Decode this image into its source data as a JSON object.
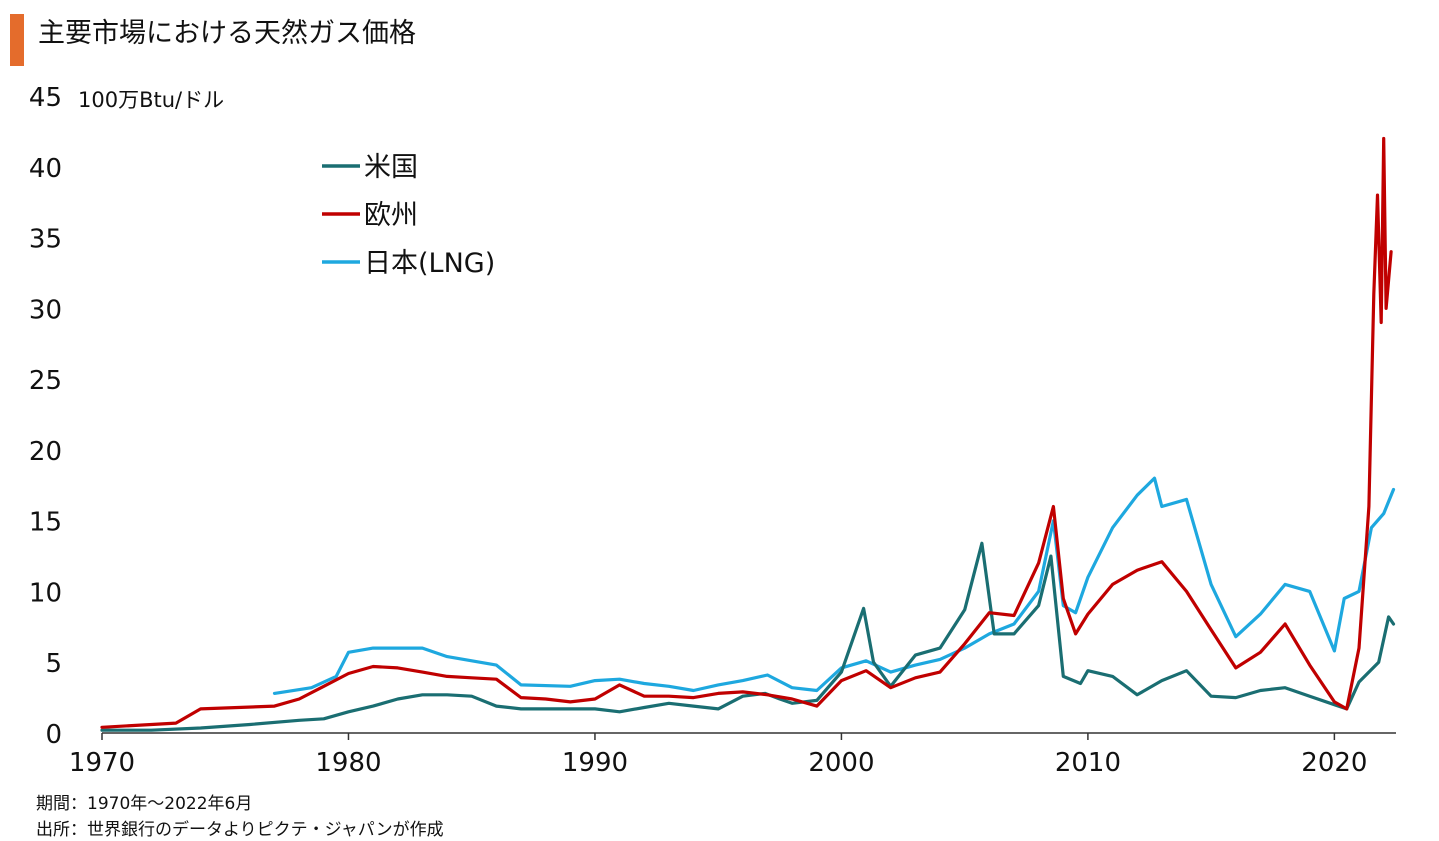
{
  "colors": {
    "title_bar": "#e46c2c",
    "us": "#1a6e72",
    "eu": "#c00000",
    "jp": "#1ea8df"
  },
  "title": "主要市場における天然ガス価格",
  "footnotes": {
    "period": "期間：1970年～2022年6月",
    "source": "出所：世界銀行のデータよりピクテ・ジャパンが作成"
  },
  "chart_data": {
    "type": "line",
    "ylabel": "100万Btu/ドル",
    "xlim": [
      1970,
      2022.5
    ],
    "ylim": [
      0,
      45
    ],
    "x_ticks": [
      1970,
      1980,
      1990,
      2000,
      2010,
      2020
    ],
    "y_ticks": [
      0,
      5,
      10,
      15,
      20,
      25,
      30,
      35,
      40,
      45
    ],
    "legend_position": "top-left",
    "grid": false,
    "series": [
      {
        "name": "米国",
        "color": "#1a6e72",
        "points": [
          [
            1970,
            0.2
          ],
          [
            1972,
            0.2
          ],
          [
            1974,
            0.35
          ],
          [
            1976,
            0.6
          ],
          [
            1978,
            0.9
          ],
          [
            1979,
            1.0
          ],
          [
            1980,
            1.5
          ],
          [
            1981,
            1.9
          ],
          [
            1982,
            2.4
          ],
          [
            1983,
            2.7
          ],
          [
            1984,
            2.7
          ],
          [
            1985,
            2.6
          ],
          [
            1986,
            1.9
          ],
          [
            1987,
            1.7
          ],
          [
            1988,
            1.7
          ],
          [
            1989,
            1.7
          ],
          [
            1990,
            1.7
          ],
          [
            1991,
            1.5
          ],
          [
            1992,
            1.8
          ],
          [
            1993,
            2.1
          ],
          [
            1994,
            1.9
          ],
          [
            1995,
            1.7
          ],
          [
            1996,
            2.6
          ],
          [
            1996.9,
            2.8
          ],
          [
            1997.5,
            2.4
          ],
          [
            1998,
            2.1
          ],
          [
            1999,
            2.3
          ],
          [
            2000,
            4.3
          ],
          [
            2000.9,
            8.8
          ],
          [
            2001.3,
            5.0
          ],
          [
            2002,
            3.3
          ],
          [
            2003,
            5.5
          ],
          [
            2004,
            6.0
          ],
          [
            2005,
            8.7
          ],
          [
            2005.7,
            13.4
          ],
          [
            2006.2,
            7.0
          ],
          [
            2007,
            7.0
          ],
          [
            2008,
            9.0
          ],
          [
            2008.5,
            12.5
          ],
          [
            2009,
            4.0
          ],
          [
            2009.7,
            3.5
          ],
          [
            2010,
            4.4
          ],
          [
            2011,
            4.0
          ],
          [
            2012,
            2.7
          ],
          [
            2013,
            3.7
          ],
          [
            2014,
            4.4
          ],
          [
            2015,
            2.6
          ],
          [
            2016,
            2.5
          ],
          [
            2017,
            3.0
          ],
          [
            2018,
            3.2
          ],
          [
            2019,
            2.6
          ],
          [
            2020,
            2.0
          ],
          [
            2020.5,
            1.7
          ],
          [
            2021,
            3.6
          ],
          [
            2021.8,
            5.0
          ],
          [
            2022.2,
            8.2
          ],
          [
            2022.4,
            7.7
          ]
        ]
      },
      {
        "name": "欧州",
        "color": "#c00000",
        "points": [
          [
            1970,
            0.4
          ],
          [
            1973,
            0.7
          ],
          [
            1974,
            1.7
          ],
          [
            1977,
            1.9
          ],
          [
            1978,
            2.4
          ],
          [
            1979,
            3.3
          ],
          [
            1980,
            4.2
          ],
          [
            1981,
            4.7
          ],
          [
            1982,
            4.6
          ],
          [
            1983,
            4.3
          ],
          [
            1984,
            4.0
          ],
          [
            1985,
            3.9
          ],
          [
            1986,
            3.8
          ],
          [
            1987,
            2.5
          ],
          [
            1988,
            2.4
          ],
          [
            1989,
            2.2
          ],
          [
            1990,
            2.4
          ],
          [
            1991,
            3.4
          ],
          [
            1992,
            2.6
          ],
          [
            1993,
            2.6
          ],
          [
            1994,
            2.5
          ],
          [
            1995,
            2.8
          ],
          [
            1996,
            2.9
          ],
          [
            1997,
            2.7
          ],
          [
            1998,
            2.4
          ],
          [
            1999,
            1.9
          ],
          [
            2000,
            3.7
          ],
          [
            2001,
            4.4
          ],
          [
            2002,
            3.2
          ],
          [
            2003,
            3.9
          ],
          [
            2004,
            4.3
          ],
          [
            2005,
            6.3
          ],
          [
            2006,
            8.5
          ],
          [
            2007,
            8.3
          ],
          [
            2008,
            12.0
          ],
          [
            2008.6,
            16.0
          ],
          [
            2009,
            9.5
          ],
          [
            2009.5,
            7.0
          ],
          [
            2010,
            8.4
          ],
          [
            2011,
            10.5
          ],
          [
            2012,
            11.5
          ],
          [
            2013,
            12.1
          ],
          [
            2014,
            10.0
          ],
          [
            2015,
            7.3
          ],
          [
            2016,
            4.6
          ],
          [
            2017,
            5.7
          ],
          [
            2018,
            7.7
          ],
          [
            2019,
            4.8
          ],
          [
            2020,
            2.2
          ],
          [
            2020.5,
            1.7
          ],
          [
            2021,
            6.0
          ],
          [
            2021.4,
            16.0
          ],
          [
            2021.6,
            31.0
          ],
          [
            2021.75,
            38.0
          ],
          [
            2021.9,
            29.0
          ],
          [
            2022.0,
            42.0
          ],
          [
            2022.1,
            30.0
          ],
          [
            2022.3,
            34.0
          ]
        ]
      },
      {
        "name": "日本(LNG)",
        "color": "#1ea8df",
        "points": [
          [
            1977,
            2.8
          ],
          [
            1978.5,
            3.2
          ],
          [
            1979.5,
            4.0
          ],
          [
            1980,
            5.7
          ],
          [
            1981,
            6.0
          ],
          [
            1983,
            6.0
          ],
          [
            1984,
            5.4
          ],
          [
            1986,
            4.8
          ],
          [
            1987,
            3.4
          ],
          [
            1989,
            3.3
          ],
          [
            1990,
            3.7
          ],
          [
            1991,
            3.8
          ],
          [
            1992,
            3.5
          ],
          [
            1993,
            3.3
          ],
          [
            1994,
            3.0
          ],
          [
            1995,
            3.4
          ],
          [
            1996,
            3.7
          ],
          [
            1997,
            4.1
          ],
          [
            1998,
            3.2
          ],
          [
            1999,
            3.0
          ],
          [
            2000,
            4.6
          ],
          [
            2001,
            5.1
          ],
          [
            2002,
            4.3
          ],
          [
            2003,
            4.8
          ],
          [
            2004,
            5.2
          ],
          [
            2005,
            6.0
          ],
          [
            2006,
            7.0
          ],
          [
            2007,
            7.7
          ],
          [
            2008,
            10.0
          ],
          [
            2008.6,
            15.0
          ],
          [
            2009,
            9.0
          ],
          [
            2009.5,
            8.5
          ],
          [
            2010,
            11.0
          ],
          [
            2011,
            14.5
          ],
          [
            2012,
            16.8
          ],
          [
            2012.7,
            18.0
          ],
          [
            2013,
            16.0
          ],
          [
            2014,
            16.5
          ],
          [
            2015,
            10.5
          ],
          [
            2016,
            6.8
          ],
          [
            2017,
            8.4
          ],
          [
            2018,
            10.5
          ],
          [
            2019,
            10.0
          ],
          [
            2020,
            5.8
          ],
          [
            2020.4,
            9.5
          ],
          [
            2021,
            10.0
          ],
          [
            2021.5,
            14.5
          ],
          [
            2022,
            15.5
          ],
          [
            2022.4,
            17.2
          ]
        ]
      }
    ]
  }
}
